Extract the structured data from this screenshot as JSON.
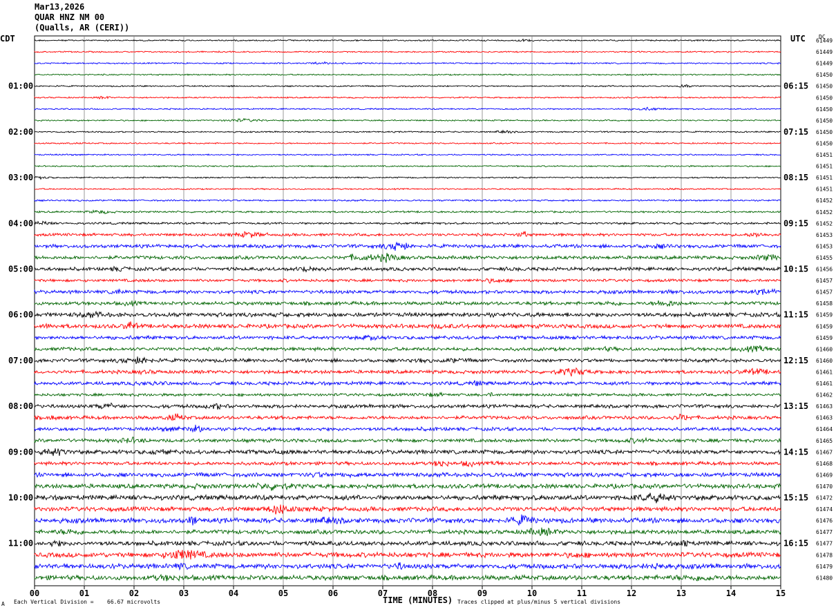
{
  "header": {
    "date": "Mar13,2026",
    "station": "QUAR HNZ NM 00",
    "location": "(Qualls, AR (CERI))"
  },
  "left_zone_label": "CDT",
  "right_zone_label": "UTC",
  "dc_label": "DC",
  "footer": {
    "scale_prefix": "Each Vertical Division =",
    "scale_value": "66.67 microvolts",
    "xlabel": "TIME (MINUTES)",
    "clip_note": "Traces clipped at plus/minus 5 vertical divisions",
    "corner_mark": "A"
  },
  "colors": {
    "background": "#ffffff",
    "grid": "#808080",
    "traces": [
      "#000000",
      "#ff0000",
      "#0000ff",
      "#006400"
    ]
  },
  "chart_data": {
    "type": "line",
    "title": "QUAR HNZ NM 00",
    "xlabel": "TIME (MINUTES)",
    "xlim": [
      0,
      15
    ],
    "x_ticks": [
      "00",
      "01",
      "02",
      "03",
      "04",
      "05",
      "06",
      "07",
      "08",
      "09",
      "10",
      "11",
      "12",
      "13",
      "14",
      "15"
    ],
    "left_time_labels": [
      "01:00",
      "02:00",
      "03:00",
      "04:00",
      "05:00",
      "06:00",
      "07:00",
      "08:00",
      "09:00",
      "10:00",
      "11:00"
    ],
    "right_time_labels": [
      "06:15",
      "07:15",
      "08:15",
      "09:15",
      "10:15",
      "11:15",
      "12:15",
      "13:15",
      "14:15",
      "15:15",
      "16:15"
    ],
    "traces_per_hour": 4,
    "trace_color_cycle": [
      "black",
      "red",
      "blue",
      "green"
    ],
    "dc_offsets": [
      "61449",
      "61449",
      "61449",
      "61450",
      "61450",
      "61450",
      "61450",
      "61450",
      "61450",
      "61450",
      "61451",
      "61451",
      "61451",
      "61451",
      "61452",
      "61452",
      "61452",
      "61453",
      "61453",
      "61455",
      "61456",
      "61457",
      "61457",
      "61458",
      "61459",
      "61459",
      "61459",
      "61460",
      "61460",
      "61461",
      "61461",
      "61462",
      "61463",
      "61463",
      "61464",
      "61465",
      "61467",
      "61468",
      "61469",
      "61470",
      "61472",
      "61474",
      "61476",
      "61477",
      "61477",
      "61478",
      "61479",
      "61480"
    ],
    "relative_amplitude": [
      1,
      1,
      1,
      1,
      1,
      1,
      1,
      1,
      1,
      1,
      1,
      1,
      1,
      1,
      1.2,
      1.3,
      1.5,
      2,
      2.5,
      2.5,
      2.5,
      2,
      2.5,
      2.5,
      3,
      3,
      2.5,
      2.5,
      2.5,
      2.5,
      2.5,
      2,
      2.5,
      2.5,
      2.5,
      2.5,
      3,
      2.5,
      3,
      3.2,
      3.5,
      3.2,
      3.5,
      3,
      3.2,
      3.5,
      3.5,
      3.5
    ]
  }
}
